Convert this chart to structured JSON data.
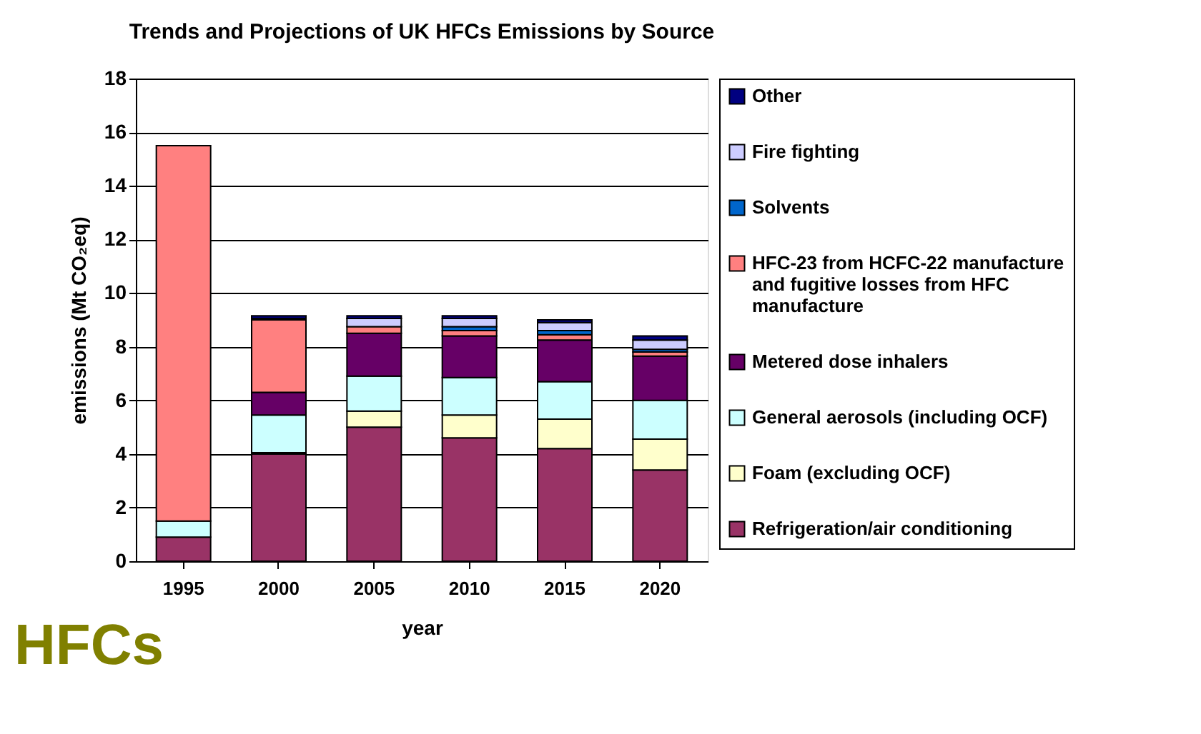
{
  "chart_data": {
    "type": "bar",
    "stacked": true,
    "title": "Trends and Projections of UK HFCs Emissions by Source",
    "xlabel": "year",
    "ylabel": "emissions (Mt CO₂eq)",
    "annotations": [
      "HFCs"
    ],
    "categories": [
      "1995",
      "2000",
      "2005",
      "2010",
      "2015",
      "2020"
    ],
    "series": [
      {
        "name": "Refrigeration/air conditioning",
        "color": "#993366",
        "values": [
          0.9,
          4.0,
          5.0,
          4.6,
          4.2,
          3.4
        ]
      },
      {
        "name": "Foam (excluding OCF)",
        "color": "#ffffcc",
        "values": [
          0,
          0.05,
          0.6,
          0.85,
          1.1,
          1.15
        ]
      },
      {
        "name": "General aerosols (including OCF)",
        "color": "#ccffff",
        "values": [
          0.6,
          1.4,
          1.3,
          1.4,
          1.4,
          1.45
        ]
      },
      {
        "name": "Metered dose inhalers",
        "color": "#660066",
        "values": [
          0,
          0.85,
          1.6,
          1.55,
          1.55,
          1.65
        ]
      },
      {
        "name": "HFC-23 from HCFC-22 manufacture and fugitive losses from HFC manufacture",
        "color": "#ff8080",
        "values": [
          14.0,
          2.7,
          0.25,
          0.2,
          0.2,
          0.15
        ]
      },
      {
        "name": "Solvents",
        "color": "#0066cc",
        "values": [
          0,
          0,
          null,
          0.15,
          0.15,
          0.1
        ]
      },
      {
        "name": "Fire fighting",
        "color": "#ccccff",
        "values": [
          0,
          0.05,
          0.3,
          0.3,
          0.3,
          0.35
        ]
      },
      {
        "name": "Other",
        "color": "#000080",
        "values": [
          0,
          0.1,
          0.1,
          0.1,
          0.1,
          0.15
        ]
      }
    ],
    "ylim": [
      0,
      18
    ],
    "yticks": [
      0,
      2,
      4,
      6,
      8,
      10,
      12,
      14,
      16,
      18
    ],
    "grid": "y",
    "legend": "right"
  }
}
